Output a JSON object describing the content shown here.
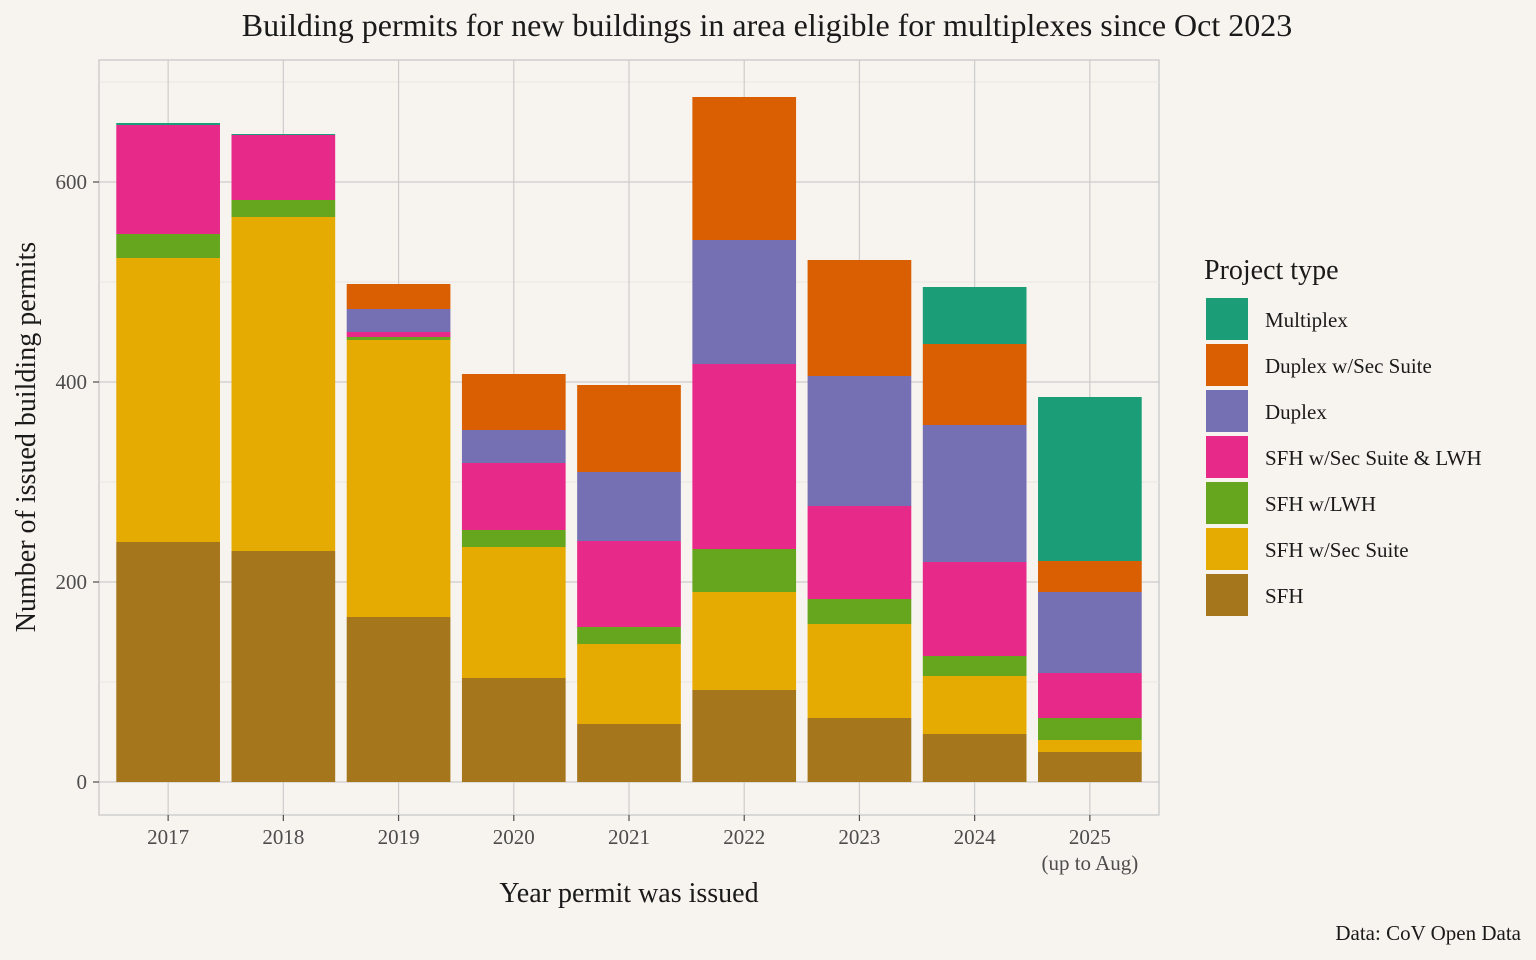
{
  "chart_data": {
    "type": "bar",
    "stacked": true,
    "title": "Building permits for new buildings in area eligible for multiplexes since Oct 2023",
    "xlabel": "Year permit was issued",
    "ylabel": "Number of issued building permits",
    "categories": [
      "2017",
      "2018",
      "2019",
      "2020",
      "2021",
      "2022",
      "2023",
      "2024",
      "2025"
    ],
    "category_sublabels": [
      "",
      "",
      "",
      "",
      "",
      "",
      "",
      "",
      "(up to Aug)"
    ],
    "ylim": [
      -33,
      722
    ],
    "yticks": [
      0,
      200,
      400,
      600
    ],
    "grid": true,
    "legend_title": "Project type",
    "legend_position": "right",
    "caption": "Data: CoV Open Data",
    "series": [
      {
        "name": "SFH",
        "color": "#a6761d",
        "values": [
          240,
          231,
          165,
          104,
          58,
          92,
          64,
          48,
          30
        ]
      },
      {
        "name": "SFH w/Sec Suite",
        "color": "#e6ab02",
        "values": [
          284,
          334,
          277,
          131,
          80,
          98,
          94,
          58,
          12
        ]
      },
      {
        "name": "SFH w/LWH",
        "color": "#66a61e",
        "values": [
          24,
          17,
          3,
          17,
          17,
          43,
          25,
          20,
          22
        ]
      },
      {
        "name": "SFH w/Sec Suite & LWH",
        "color": "#e7298a",
        "values": [
          109,
          65,
          5,
          67,
          86,
          185,
          93,
          94,
          45
        ]
      },
      {
        "name": "Duplex",
        "color": "#7570b3",
        "values": [
          0,
          0,
          23,
          33,
          69,
          124,
          130,
          137,
          81
        ]
      },
      {
        "name": "Duplex w/Sec Suite",
        "color": "#d95f02",
        "values": [
          0,
          0,
          25,
          56,
          87,
          143,
          116,
          81,
          31
        ]
      },
      {
        "name": "Multiplex",
        "color": "#1b9e77",
        "values": [
          2,
          1,
          0,
          0,
          0,
          0,
          0,
          57,
          164
        ]
      }
    ]
  }
}
